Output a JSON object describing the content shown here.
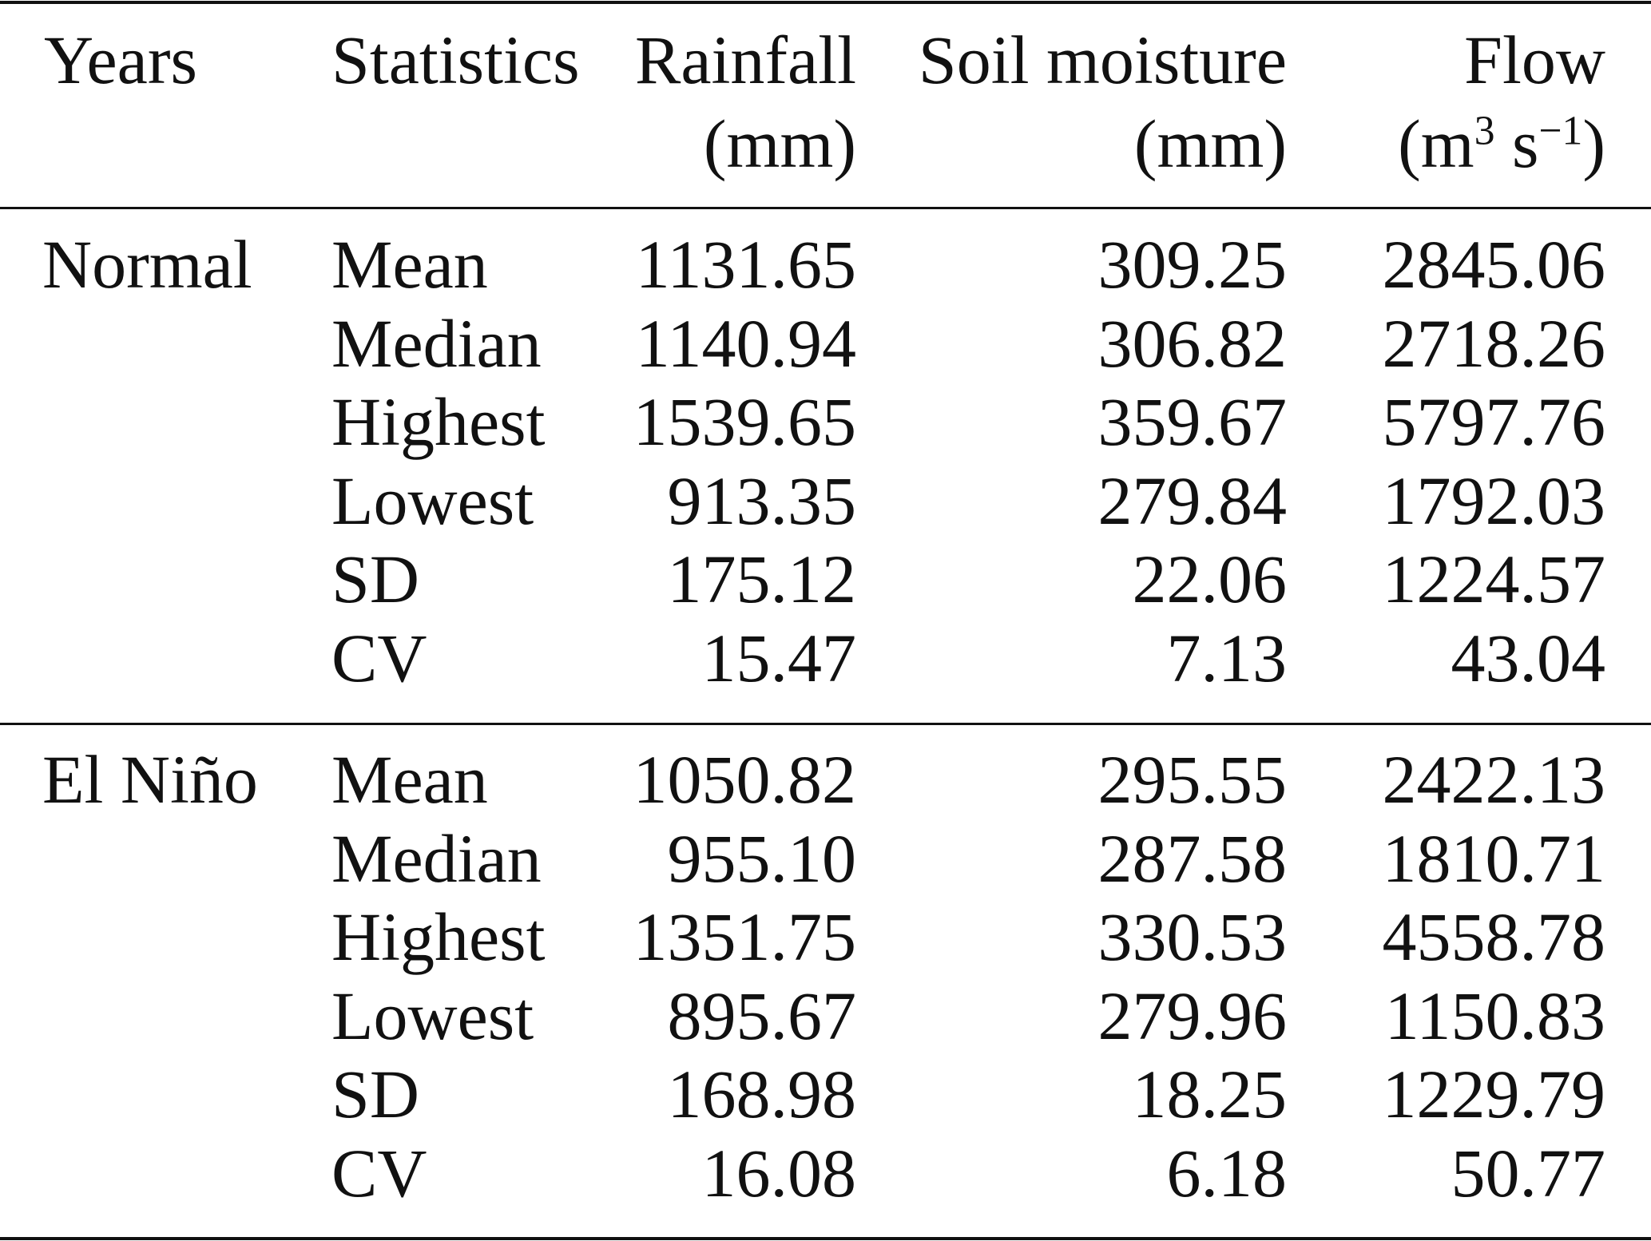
{
  "header": {
    "years": "Years",
    "statistics": "Statistics",
    "rainfall": "Rainfall",
    "rainfall_unit": "(mm)",
    "soil": "Soil moisture",
    "soil_unit": "(mm)",
    "flow": "Flow",
    "flow_unit_open": "(m",
    "flow_unit_sup1": "3",
    "flow_unit_mid": " s",
    "flow_unit_sup2": "−1",
    "flow_unit_close": ")"
  },
  "groups": [
    {
      "label": "Normal",
      "rows": [
        {
          "stat": "Mean",
          "rainfall": "1131.65",
          "soil": "309.25",
          "flow": "2845.06"
        },
        {
          "stat": "Median",
          "rainfall": "1140.94",
          "soil": "306.82",
          "flow": "2718.26"
        },
        {
          "stat": "Highest",
          "rainfall": "1539.65",
          "soil": "359.67",
          "flow": "5797.76"
        },
        {
          "stat": "Lowest",
          "rainfall": "913.35",
          "soil": "279.84",
          "flow": "1792.03"
        },
        {
          "stat": "SD",
          "rainfall": "175.12",
          "soil": "22.06",
          "flow": "1224.57"
        },
        {
          "stat": "CV",
          "rainfall": "15.47",
          "soil": "7.13",
          "flow": "43.04"
        }
      ]
    },
    {
      "label": "El Niño",
      "rows": [
        {
          "stat": "Mean",
          "rainfall": "1050.82",
          "soil": "295.55",
          "flow": "2422.13"
        },
        {
          "stat": "Median",
          "rainfall": "955.10",
          "soil": "287.58",
          "flow": "1810.71"
        },
        {
          "stat": "Highest",
          "rainfall": "1351.75",
          "soil": "330.53",
          "flow": "4558.78"
        },
        {
          "stat": "Lowest",
          "rainfall": "895.67",
          "soil": "279.96",
          "flow": "1150.83"
        },
        {
          "stat": "SD",
          "rainfall": "168.98",
          "soil": "18.25",
          "flow": "1229.79"
        },
        {
          "stat": "CV",
          "rainfall": "16.08",
          "soil": "6.18",
          "flow": "50.77"
        }
      ]
    }
  ]
}
